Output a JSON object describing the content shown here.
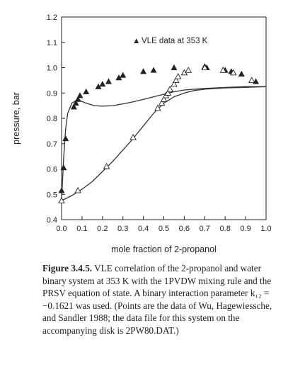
{
  "chart_data": {
    "type": "scatter",
    "title": "",
    "xlabel": "mole fraction of 2-propanol",
    "ylabel": "pressure, bar",
    "xlim": [
      0.0,
      1.0
    ],
    "ylim": [
      0.4,
      1.2
    ],
    "x_ticks": [
      "0.0",
      "0.1",
      "0.2",
      "0.3",
      "0.4",
      "0.5",
      "0.6",
      "0.7",
      "0.8",
      "0.9",
      "1.0"
    ],
    "y_ticks": [
      "0.4",
      "0.5",
      "0.6",
      "0.7",
      "0.8",
      "0.9",
      "1.0",
      "1.1",
      "1.2"
    ],
    "legend": {
      "marker": "▲",
      "label": "VLE data at 353 K",
      "placement": "top-center"
    },
    "series": [
      {
        "marker": "filled-triangle",
        "x": [
          0.0,
          0.01,
          0.02,
          0.06,
          0.07,
          0.08,
          0.09,
          0.12,
          0.18,
          0.2,
          0.23,
          0.28,
          0.3,
          0.4,
          0.45,
          0.55,
          0.7,
          0.71,
          0.8,
          0.83,
          0.88,
          0.95
        ],
        "y": [
          0.515,
          0.605,
          0.72,
          0.845,
          0.86,
          0.875,
          0.89,
          0.905,
          0.925,
          0.935,
          0.945,
          0.96,
          0.97,
          0.985,
          0.99,
          1.0,
          1.005,
          1.0,
          0.99,
          0.985,
          0.975,
          0.945
        ]
      },
      {
        "marker": "open-triangle",
        "x": [
          0.0,
          0.08,
          0.22,
          0.35,
          0.47,
          0.49,
          0.5,
          0.51,
          0.52,
          0.53,
          0.55,
          0.56,
          0.57,
          0.6,
          0.62,
          0.7,
          0.79,
          0.84,
          0.93
        ],
        "y": [
          0.475,
          0.515,
          0.61,
          0.725,
          0.84,
          0.86,
          0.875,
          0.89,
          0.9,
          0.915,
          0.935,
          0.95,
          0.965,
          0.98,
          0.99,
          1.0,
          0.99,
          0.98,
          0.95
        ]
      },
      {
        "line": "bubble-curve",
        "x": [
          0.0,
          0.01,
          0.02,
          0.03,
          0.05,
          0.07,
          0.09,
          0.12,
          0.16,
          0.2,
          0.25,
          0.3,
          0.35,
          0.4,
          0.45,
          0.5,
          0.55,
          0.6,
          0.7,
          0.8,
          0.9,
          1.0
        ],
        "y": [
          0.475,
          0.64,
          0.76,
          0.82,
          0.86,
          0.87,
          0.87,
          0.86,
          0.85,
          0.848,
          0.85,
          0.857,
          0.865,
          0.875,
          0.885,
          0.895,
          0.905,
          0.912,
          0.918,
          0.922,
          0.925,
          0.925
        ]
      },
      {
        "line": "dew-curve",
        "x": [
          0.0,
          0.05,
          0.1,
          0.15,
          0.2,
          0.25,
          0.3,
          0.35,
          0.4,
          0.45,
          0.5,
          0.55,
          0.6,
          0.65,
          0.7,
          0.8,
          0.9,
          1.0
        ],
        "y": [
          0.475,
          0.495,
          0.52,
          0.55,
          0.59,
          0.63,
          0.675,
          0.72,
          0.77,
          0.82,
          0.86,
          0.885,
          0.9,
          0.91,
          0.915,
          0.92,
          0.922,
          0.925
        ]
      }
    ]
  },
  "caption": {
    "label": "Figure 3.4.5.",
    "text": " VLE correlation of the 2-propanol and water binary system at 353 K with the 1PVDW mixing rule and the PRSV equation of state. A binary interaction parameter k₁₂ = −0.1621 was used. (Points are the data of Wu, Hagewiessche, and Sandler 1988; the data file for this system on the accompanying disk is 2PW80.DAT.)"
  }
}
